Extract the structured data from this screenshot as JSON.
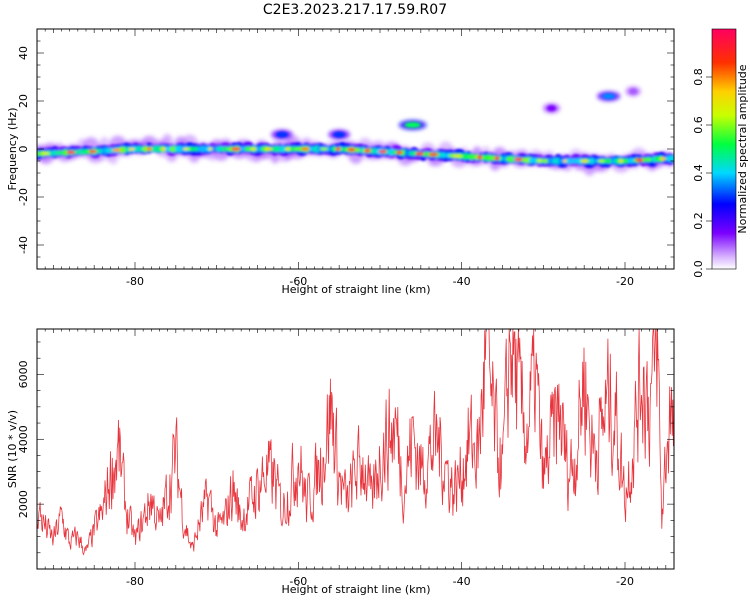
{
  "title": "C2E3.2023.217.17.59.R07",
  "colors": {
    "snr_line": "#e8343c",
    "axes": "#000000"
  },
  "chart_data": [
    {
      "type": "heatmap",
      "xlabel": "Height of straight line (km)",
      "ylabel": "Frequency (Hz)",
      "xlim": [
        -92,
        -14
      ],
      "ylim": [
        -50,
        50
      ],
      "x_ticks": [
        -80,
        -60,
        -40,
        -20
      ],
      "y_ticks": [
        -40,
        -20,
        0,
        20,
        40
      ],
      "colorbar": {
        "label": "Normalized spectral amplitude",
        "range": [
          0,
          1
        ],
        "ticks": [
          "0.0",
          "0.2",
          "0.4",
          "0.6",
          "0.8"
        ],
        "colormap": "hsv-rainbow (violet → blue → cyan → green → yellow → red → magenta)"
      },
      "ridge": {
        "description": "main spectral ridge",
        "heights_km": [
          -92,
          -85,
          -80,
          -75,
          -70,
          -65,
          -60,
          -55,
          -50,
          -45,
          -40,
          -35,
          -30,
          -25,
          -20,
          -15
        ],
        "center_freq_hz": [
          -2,
          -1,
          0,
          0,
          0,
          0,
          0,
          0,
          -1,
          -2,
          -3,
          -4,
          -5,
          -5,
          -5,
          -4
        ]
      },
      "features": [
        {
          "height_km": -46,
          "freq_hz": 10,
          "amplitude": 0.5
        },
        {
          "height_km": -62,
          "freq_hz": 6,
          "amplitude": 0.3
        },
        {
          "height_km": -55,
          "freq_hz": 6,
          "amplitude": 0.3
        },
        {
          "height_km": -22,
          "freq_hz": 22,
          "amplitude": 0.35
        },
        {
          "height_km": -19,
          "freq_hz": 24,
          "amplitude": 0.1
        },
        {
          "height_km": -29,
          "freq_hz": 17,
          "amplitude": 0.15
        }
      ]
    },
    {
      "type": "line",
      "xlabel": "Height of straight line (km)",
      "ylabel": "SNR (10 * v/v)",
      "xlim": [
        -92,
        -14
      ],
      "ylim": [
        0,
        7400
      ],
      "x_ticks": [
        -80,
        -60,
        -40,
        -20
      ],
      "y_ticks": [
        2000,
        4000,
        6000
      ],
      "series": [
        {
          "color": "#e8343c",
          "anchors": [
            [
              -92,
              1900
            ],
            [
              -91,
              1300
            ],
            [
              -90,
              900
            ],
            [
              -89,
              1600
            ],
            [
              -88,
              800
            ],
            [
              -87,
              1000
            ],
            [
              -86,
              500
            ],
            [
              -85,
              1200
            ],
            [
              -84,
              1700
            ],
            [
              -83,
              2900
            ],
            [
              -82,
              3600
            ],
            [
              -81,
              1700
            ],
            [
              -80,
              900
            ],
            [
              -79,
              1500
            ],
            [
              -78,
              2200
            ],
            [
              -77,
              1300
            ],
            [
              -76,
              2400
            ],
            [
              -75,
              3500
            ],
            [
              -74,
              1500
            ],
            [
              -73,
              600
            ],
            [
              -72,
              1500
            ],
            [
              -71,
              2200
            ],
            [
              -70,
              1200
            ],
            [
              -69,
              1500
            ],
            [
              -68,
              2500
            ],
            [
              -67,
              1500
            ],
            [
              -66,
              2000
            ],
            [
              -65,
              2500
            ],
            [
              -64,
              3000
            ],
            [
              -63,
              2800
            ],
            [
              -62,
              1800
            ],
            [
              -61,
              2500
            ],
            [
              -60,
              3500
            ],
            [
              -59,
              2000
            ],
            [
              -58,
              2600
            ],
            [
              -57,
              3500
            ],
            [
              -56,
              5000
            ],
            [
              -55,
              2800
            ],
            [
              -54,
              2000
            ],
            [
              -53,
              3000
            ],
            [
              -52,
              3300
            ],
            [
              -51,
              2000
            ],
            [
              -50,
              3500
            ],
            [
              -49,
              4100
            ],
            [
              -48,
              4300
            ],
            [
              -47,
              2500
            ],
            [
              -46,
              4200
            ],
            [
              -45,
              3000
            ],
            [
              -44,
              3500
            ],
            [
              -43,
              4000
            ],
            [
              -42,
              3200
            ],
            [
              -41,
              2400
            ],
            [
              -40,
              3000
            ],
            [
              -39,
              4000
            ],
            [
              -38,
              3500
            ],
            [
              -37,
              6700
            ],
            [
              -36,
              4300
            ],
            [
              -35,
              3000
            ],
            [
              -34,
              7300
            ],
            [
              -33,
              5200
            ],
            [
              -32,
              4200
            ],
            [
              -31,
              6000
            ],
            [
              -30,
              2700
            ],
            [
              -29,
              4000
            ],
            [
              -28,
              4800
            ],
            [
              -27,
              3000
            ],
            [
              -26,
              3500
            ],
            [
              -25,
              6100
            ],
            [
              -24,
              3700
            ],
            [
              -23,
              4200
            ],
            [
              -22,
              5300
            ],
            [
              -21,
              4500
            ],
            [
              -20,
              2200
            ],
            [
              -19,
              3800
            ],
            [
              -18,
              6200
            ],
            [
              -17,
              5100
            ],
            [
              -16,
              6700
            ],
            [
              -15.5,
              1500
            ],
            [
              -15,
              3500
            ],
            [
              -14.5,
              4900
            ],
            [
              -14,
              3600
            ]
          ]
        }
      ]
    }
  ]
}
